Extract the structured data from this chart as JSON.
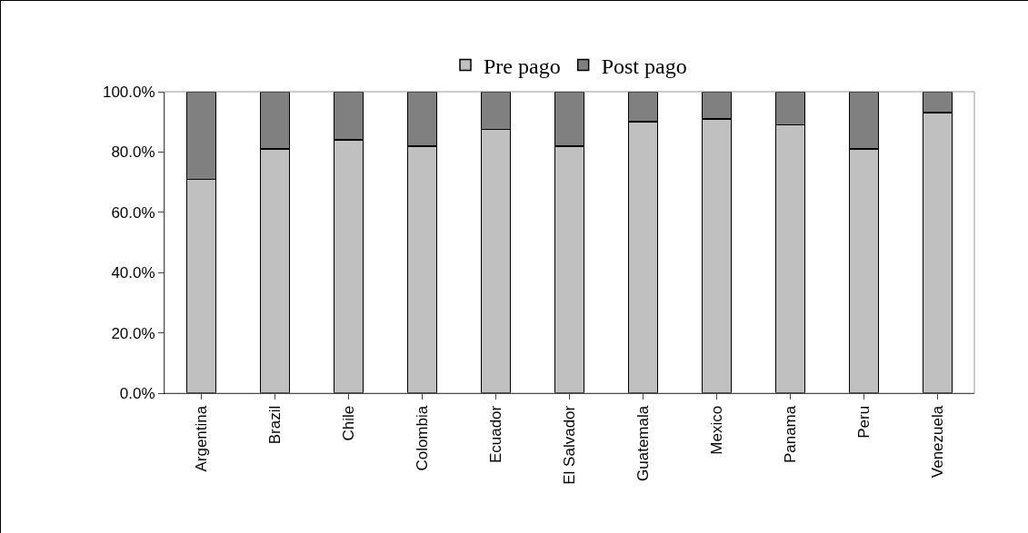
{
  "chart_data": {
    "type": "bar",
    "stacked": true,
    "categories": [
      "Argentina",
      "Brazil",
      "Chile",
      "Colombia",
      "Ecuador",
      "El Salvador",
      "Guatemala",
      "Mexico",
      "Panama",
      "Peru",
      "Venezuela"
    ],
    "series": [
      {
        "name": "Pre pago",
        "color": "#c0c0c0",
        "values": [
          71,
          81,
          84,
          82,
          87.5,
          82,
          90,
          91,
          89,
          81,
          93
        ]
      },
      {
        "name": "Post pago",
        "color": "#808080",
        "values": [
          29,
          19,
          16,
          18,
          12.5,
          18,
          10,
          9,
          11,
          19,
          7
        ]
      }
    ],
    "ylim": [
      0,
      100
    ],
    "yticks": [
      {
        "value": 0,
        "label": "0.0%"
      },
      {
        "value": 20,
        "label": "20.0%"
      },
      {
        "value": 40,
        "label": "40.0%"
      },
      {
        "value": 60,
        "label": "60.0%"
      },
      {
        "value": 80,
        "label": "80.0%"
      },
      {
        "value": 100,
        "label": "100.0%"
      }
    ],
    "grid": false,
    "legend": "top"
  }
}
